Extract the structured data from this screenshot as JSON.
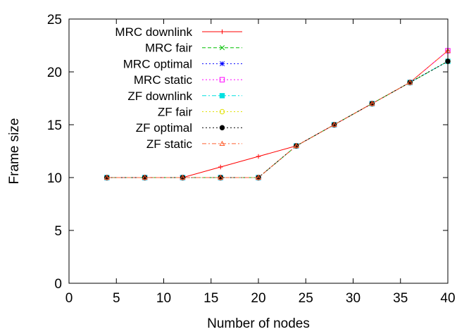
{
  "chart_data": {
    "type": "line",
    "title": "",
    "xlabel": "Number of nodes",
    "ylabel": "Frame size",
    "xlim": [
      0,
      40
    ],
    "ylim": [
      0,
      25
    ],
    "xticks": [
      0,
      5,
      10,
      15,
      20,
      25,
      30,
      35,
      40
    ],
    "yticks": [
      0,
      5,
      10,
      15,
      20,
      25
    ],
    "grid": false,
    "legend_position": "top-left",
    "x": [
      4,
      8,
      12,
      16,
      20,
      24,
      28,
      32,
      36,
      40
    ],
    "series": [
      {
        "name": "MRC downlink",
        "values": [
          10,
          10,
          10,
          11,
          12,
          13,
          15,
          17,
          19,
          22
        ],
        "color": "#ff0000",
        "marker": "plus",
        "dash": "solid"
      },
      {
        "name": "MRC fair",
        "values": [
          10,
          10,
          10,
          10,
          10,
          13,
          15,
          17,
          19,
          21
        ],
        "color": "#00c000",
        "marker": "cross",
        "dash": "dashed"
      },
      {
        "name": "MRC optimal",
        "values": [
          10,
          10,
          10,
          10,
          10,
          13,
          15,
          17,
          19,
          21
        ],
        "color": "#0000ff",
        "marker": "star",
        "dash": "dotted"
      },
      {
        "name": "MRC static",
        "values": [
          10,
          10,
          10,
          10,
          10,
          13,
          15,
          17,
          19,
          22
        ],
        "color": "#ff00ff",
        "marker": "open-square",
        "dash": "dotted"
      },
      {
        "name": "ZF downlink",
        "values": [
          10,
          10,
          10,
          10,
          10,
          13,
          15,
          17,
          19,
          21
        ],
        "color": "#00e0e0",
        "marker": "filled-square",
        "dash": "dashdot"
      },
      {
        "name": "ZF fair",
        "values": [
          10,
          10,
          10,
          10,
          10,
          13,
          15,
          17,
          19,
          21
        ],
        "color": "#e0e000",
        "marker": "open-circle",
        "dash": "dotted"
      },
      {
        "name": "ZF optimal",
        "values": [
          10,
          10,
          10,
          10,
          10,
          13,
          15,
          17,
          19,
          21
        ],
        "color": "#000000",
        "marker": "filled-circle",
        "dash": "dotted"
      },
      {
        "name": "ZF static",
        "values": [
          10,
          10,
          10,
          10,
          10,
          13,
          15,
          17,
          19,
          22
        ],
        "color": "#ff6030",
        "marker": "open-triangle",
        "dash": "dashdot"
      }
    ]
  }
}
